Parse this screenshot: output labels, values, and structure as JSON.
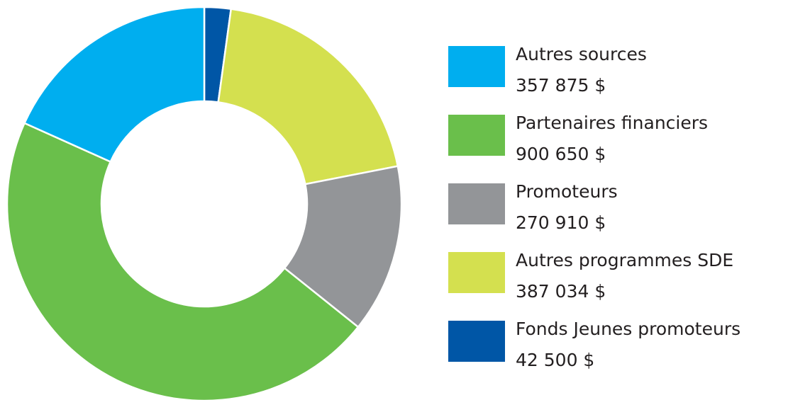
{
  "chart_data": {
    "type": "pie",
    "categories": [
      "Autres sources",
      "Partenaires financiers",
      "Promoteurs",
      "Autres programmes SDE",
      "Fonds Jeunes promoteurs"
    ],
    "values": [
      357875,
      900650,
      270910,
      387034,
      42500
    ],
    "value_labels": [
      "357 875 $",
      "900 650 $",
      "270 910 $",
      "387 034 $",
      "42 500 $"
    ],
    "colors": [
      "#00aeef",
      "#6abf4b",
      "#939598",
      "#d4e04f",
      "#0056a6"
    ],
    "legend": "right"
  }
}
